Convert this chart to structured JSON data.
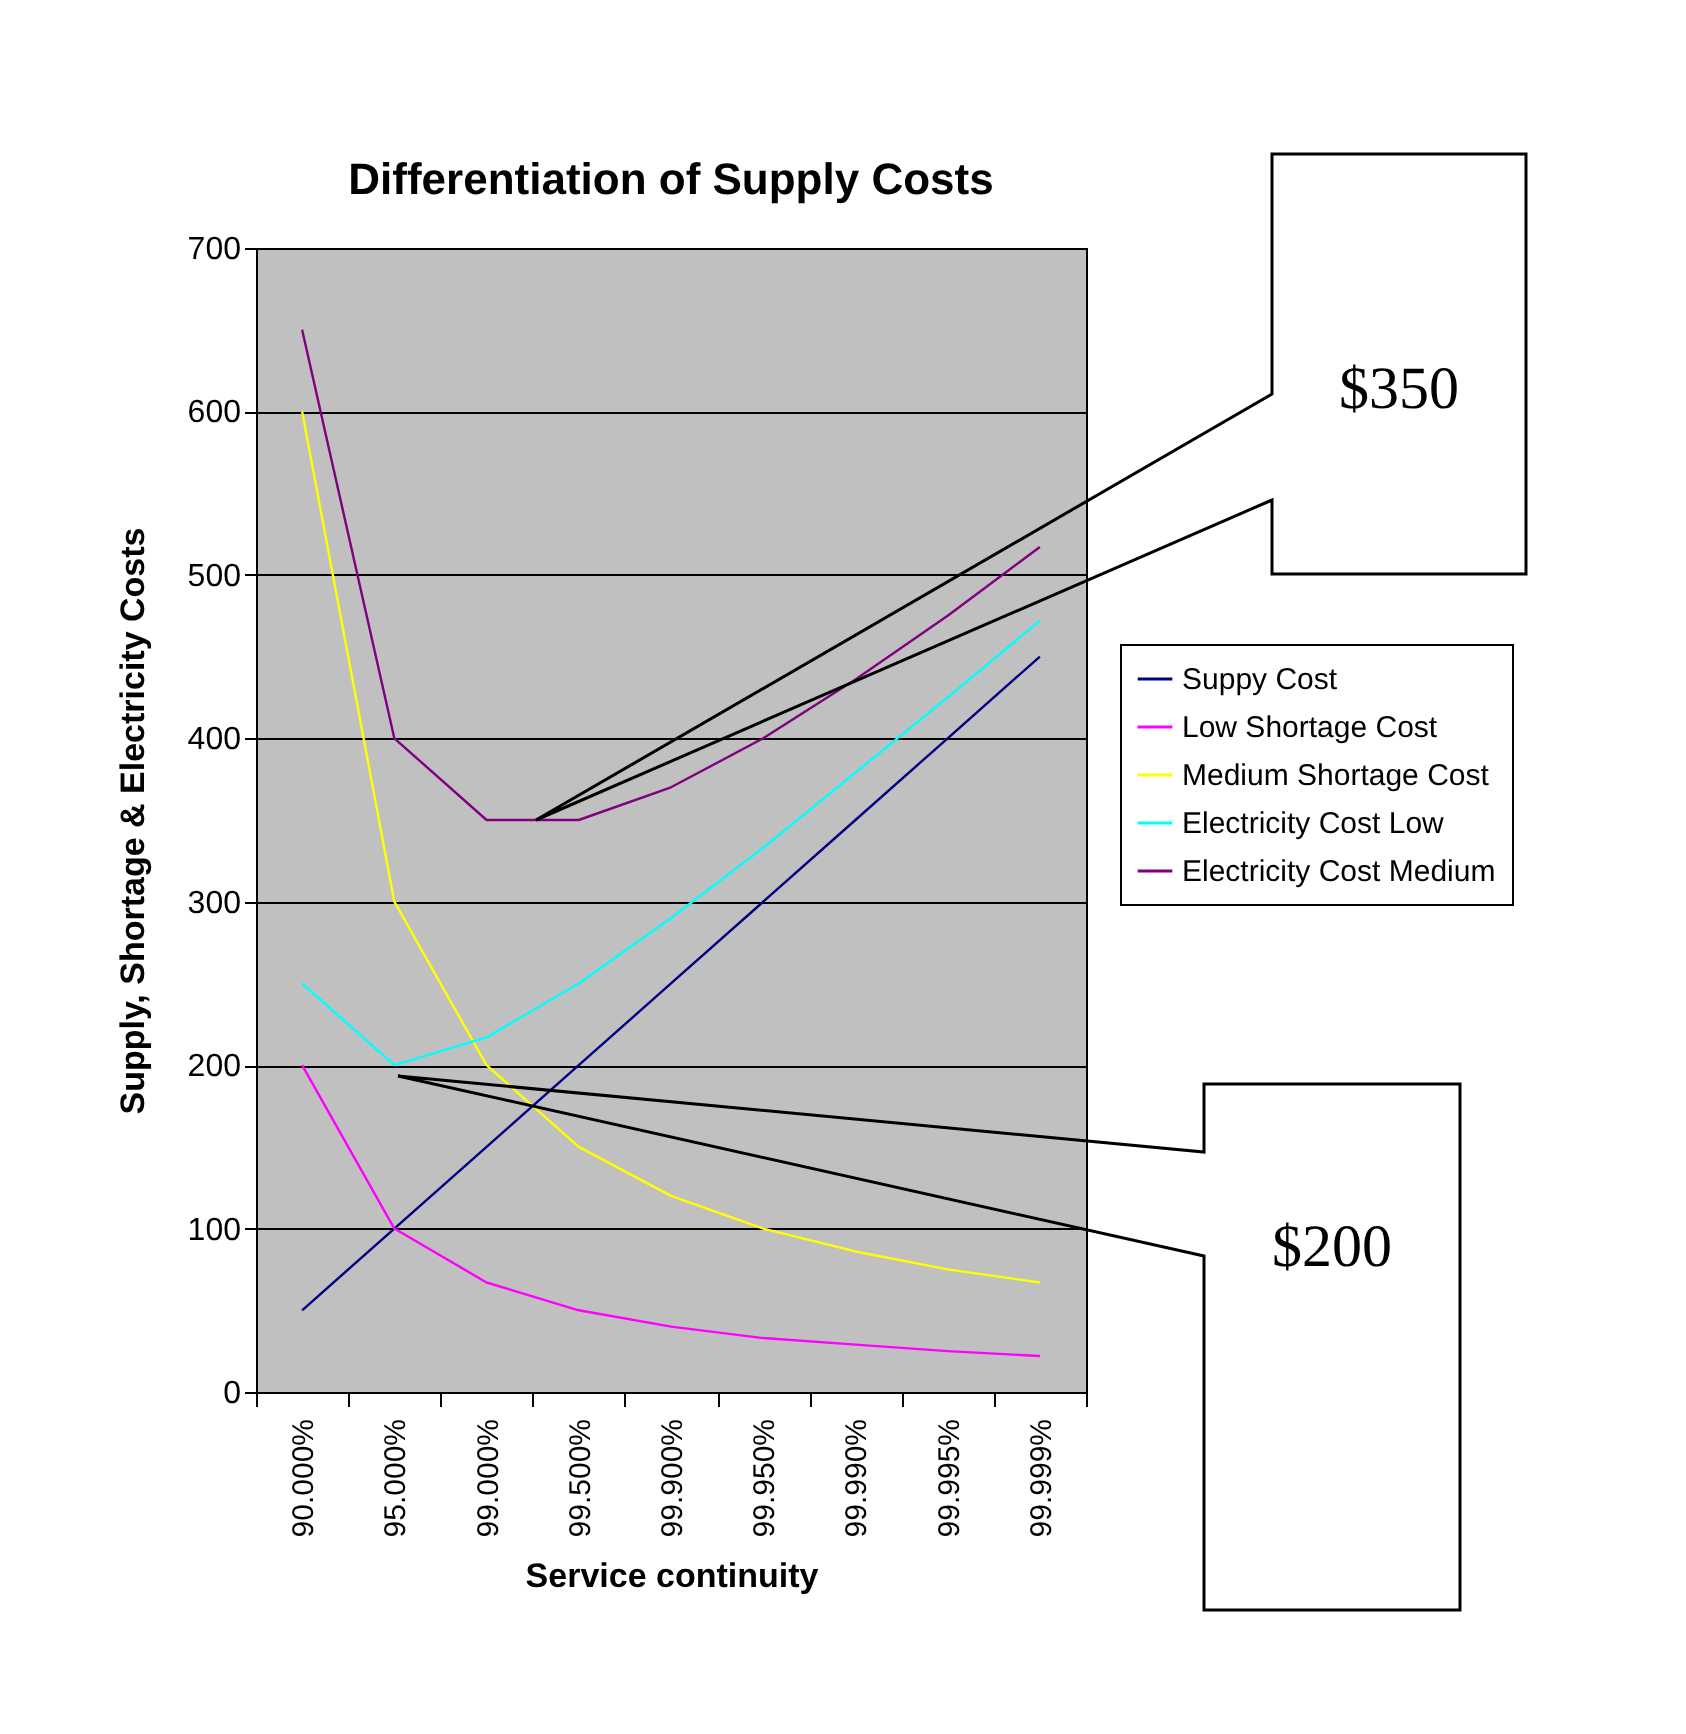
{
  "chart_data": {
    "type": "line",
    "title": "Differentiation of Supply Costs",
    "xlabel": "Service continuity",
    "ylabel": "Supply, Shortage & Electricity Costs",
    "categories": [
      "90.000%",
      "95.000%",
      "99.000%",
      "99.500%",
      "99.900%",
      "99.950%",
      "99.990%",
      "99.995%",
      "99.999%"
    ],
    "series": [
      {
        "name": "Suppy Cost",
        "color": "#000080",
        "values": [
          50,
          100,
          150,
          200,
          250,
          300,
          350,
          400,
          450
        ]
      },
      {
        "name": "Low Shortage Cost",
        "color": "#ff00ff",
        "values": [
          200,
          100,
          67,
          50,
          40,
          33,
          29,
          25,
          22
        ]
      },
      {
        "name": "Medium Shortage Cost",
        "color": "#ffff00",
        "values": [
          600,
          300,
          200,
          150,
          120,
          100,
          86,
          75,
          67
        ]
      },
      {
        "name": "Electricity Cost Low",
        "color": "#00ffff",
        "values": [
          250,
          200,
          217,
          250,
          290,
          333,
          379,
          425,
          472
        ]
      },
      {
        "name": "Electricity Cost Medium",
        "color": "#800080",
        "values": [
          650,
          400,
          350,
          350,
          370,
          400,
          436,
          475,
          517
        ]
      }
    ],
    "ylim": [
      0,
      700
    ],
    "yticks": [
      0,
      100,
      200,
      300,
      400,
      500,
      600,
      700
    ],
    "grid": "y",
    "legend": "right",
    "marker": "none",
    "line_style": "solid",
    "annotations": [
      "$350",
      "$200"
    ]
  }
}
